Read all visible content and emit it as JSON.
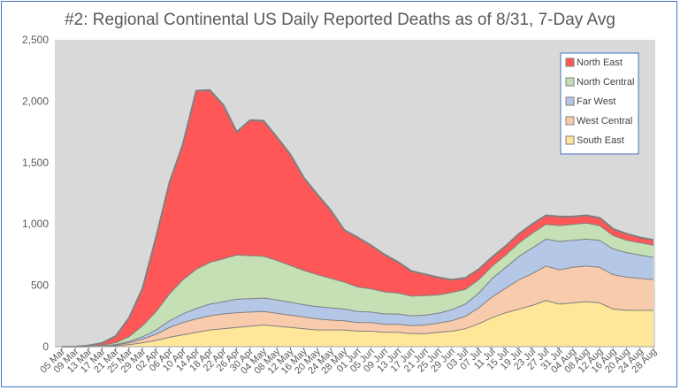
{
  "chart_data": {
    "type": "area",
    "stacked": true,
    "title": "#2:  Regional Continental US Daily Reported Deaths as of 8/31, 7-Day Avg",
    "xlabel": "",
    "ylabel": "",
    "ylim": [
      0,
      2500
    ],
    "y_ticks": [
      "0",
      "500",
      "1,000",
      "1,500",
      "2,000",
      "2,500"
    ],
    "grid": false,
    "legend_position": "top-right",
    "x_tick_labels": [
      "05 Mar",
      "09 Mar",
      "13 Mar",
      "17 Mar",
      "21 Mar",
      "25 Mar",
      "29 Mar",
      "02 Apr",
      "06 Apr",
      "10 Apr",
      "14 Apr",
      "18 Apr",
      "22 Apr",
      "26 Apr",
      "30 Apr",
      "04 May",
      "08 May",
      "12 May",
      "16 May",
      "20 May",
      "24 May",
      "28 May",
      "01 Jun",
      "05 Jun",
      "09 Jun",
      "13 Jun",
      "17 Jun",
      "21 Jun",
      "25 Jun",
      "29 Jun",
      "03 Jul",
      "07 Jul",
      "11 Jul",
      "15 Jul",
      "19 Jul",
      "23 Jul",
      "27 Jul",
      "31 Jul",
      "04 Aug",
      "08 Aug",
      "12 Aug",
      "16 Aug",
      "20 Aug",
      "24 Aug",
      "28 Aug"
    ],
    "x": [
      "05 Mar",
      "09 Mar",
      "13 Mar",
      "17 Mar",
      "21 Mar",
      "25 Mar",
      "29 Mar",
      "02 Apr",
      "06 Apr",
      "10 Apr",
      "14 Apr",
      "18 Apr",
      "22 Apr",
      "26 Apr",
      "30 Apr",
      "04 May",
      "08 May",
      "12 May",
      "16 May",
      "20 May",
      "24 May",
      "28 May",
      "01 Jun",
      "05 Jun",
      "09 Jun",
      "13 Jun",
      "17 Jun",
      "21 Jun",
      "25 Jun",
      "29 Jun",
      "03 Jul",
      "07 Jul",
      "11 Jul",
      "15 Jul",
      "19 Jul",
      "23 Jul",
      "27 Jul",
      "31 Jul",
      "04 Aug",
      "08 Aug",
      "12 Aug",
      "16 Aug",
      "20 Aug",
      "24 Aug",
      "28 Aug"
    ],
    "series": [
      {
        "name": "South East",
        "color": "#ffe699",
        "values": [
          0,
          0,
          2,
          5,
          10,
          20,
          35,
          55,
          80,
          100,
          120,
          140,
          150,
          160,
          170,
          180,
          170,
          160,
          150,
          140,
          140,
          140,
          130,
          130,
          120,
          120,
          110,
          110,
          120,
          130,
          150,
          190,
          240,
          280,
          310,
          340,
          380,
          350,
          360,
          370,
          360,
          310,
          300,
          300,
          300
        ]
      },
      {
        "name": "West Central",
        "color": "#f8cbad",
        "values": [
          0,
          0,
          1,
          3,
          6,
          15,
          30,
          50,
          80,
          100,
          110,
          115,
          120,
          120,
          115,
          110,
          105,
          100,
          95,
          90,
          80,
          75,
          70,
          70,
          65,
          65,
          65,
          70,
          75,
          85,
          100,
          130,
          170,
          200,
          240,
          260,
          280,
          280,
          290,
          290,
          290,
          280,
          270,
          260,
          250
        ]
      },
      {
        "name": "Far West",
        "color": "#b4c7e7",
        "values": [
          0,
          0,
          1,
          2,
          5,
          10,
          20,
          35,
          55,
          70,
          85,
          95,
          100,
          110,
          110,
          110,
          110,
          105,
          100,
          100,
          100,
          95,
          90,
          85,
          85,
          85,
          80,
          80,
          80,
          90,
          100,
          120,
          150,
          170,
          190,
          210,
          220,
          230,
          220,
          220,
          220,
          210,
          200,
          190,
          180
        ]
      },
      {
        "name": "North Central",
        "color": "#c5e0b4",
        "values": [
          0,
          0,
          2,
          5,
          15,
          40,
          90,
          150,
          220,
          280,
          320,
          340,
          350,
          360,
          350,
          340,
          320,
          300,
          280,
          260,
          240,
          220,
          200,
          190,
          180,
          170,
          160,
          160,
          150,
          140,
          120,
          110,
          100,
          100,
          110,
          120,
          120,
          130,
          130,
          130,
          120,
          110,
          100,
          100,
          100
        ]
      },
      {
        "name": "North East",
        "color": "#ff5757",
        "values": [
          0,
          0,
          4,
          15,
          50,
          150,
          300,
          600,
          900,
          1100,
          1450,
          1400,
          1250,
          1000,
          1100,
          1100,
          1000,
          900,
          750,
          650,
          550,
          420,
          400,
          350,
          300,
          250,
          200,
          170,
          140,
          100,
          90,
          80,
          70,
          70,
          70,
          70,
          70,
          70,
          60,
          60,
          60,
          50,
          50,
          40,
          40
        ]
      }
    ]
  }
}
